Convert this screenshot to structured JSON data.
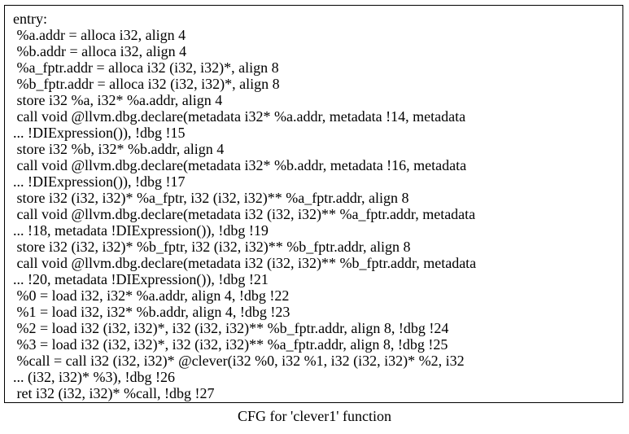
{
  "graph": {
    "caption": "CFG for 'clever1' function",
    "node": {
      "label": "entry:",
      "lines": [
        " %a.addr = alloca i32, align 4",
        " %b.addr = alloca i32, align 4",
        " %a_fptr.addr = alloca i32 (i32, i32)*, align 8",
        " %b_fptr.addr = alloca i32 (i32, i32)*, align 8",
        " store i32 %a, i32* %a.addr, align 4",
        " call void @llvm.dbg.declare(metadata i32* %a.addr, metadata !14, metadata",
        "... !DIExpression()), !dbg !15",
        " store i32 %b, i32* %b.addr, align 4",
        " call void @llvm.dbg.declare(metadata i32* %b.addr, metadata !16, metadata",
        "... !DIExpression()), !dbg !17",
        " store i32 (i32, i32)* %a_fptr, i32 (i32, i32)** %a_fptr.addr, align 8",
        " call void @llvm.dbg.declare(metadata i32 (i32, i32)** %a_fptr.addr, metadata",
        "... !18, metadata !DIExpression()), !dbg !19",
        " store i32 (i32, i32)* %b_fptr, i32 (i32, i32)** %b_fptr.addr, align 8",
        " call void @llvm.dbg.declare(metadata i32 (i32, i32)** %b_fptr.addr, metadata",
        "... !20, metadata !DIExpression()), !dbg !21",
        " %0 = load i32, i32* %a.addr, align 4, !dbg !22",
        " %1 = load i32, i32* %b.addr, align 4, !dbg !23",
        " %2 = load i32 (i32, i32)*, i32 (i32, i32)** %b_fptr.addr, align 8, !dbg !24",
        " %3 = load i32 (i32, i32)*, i32 (i32, i32)** %a_fptr.addr, align 8, !dbg !25",
        " %call = call i32 (i32, i32)* @clever(i32 %0, i32 %1, i32 (i32, i32)* %2, i32",
        "... (i32, i32)* %3), !dbg !26",
        " ret i32 (i32, i32)* %call, !dbg !27"
      ]
    }
  }
}
